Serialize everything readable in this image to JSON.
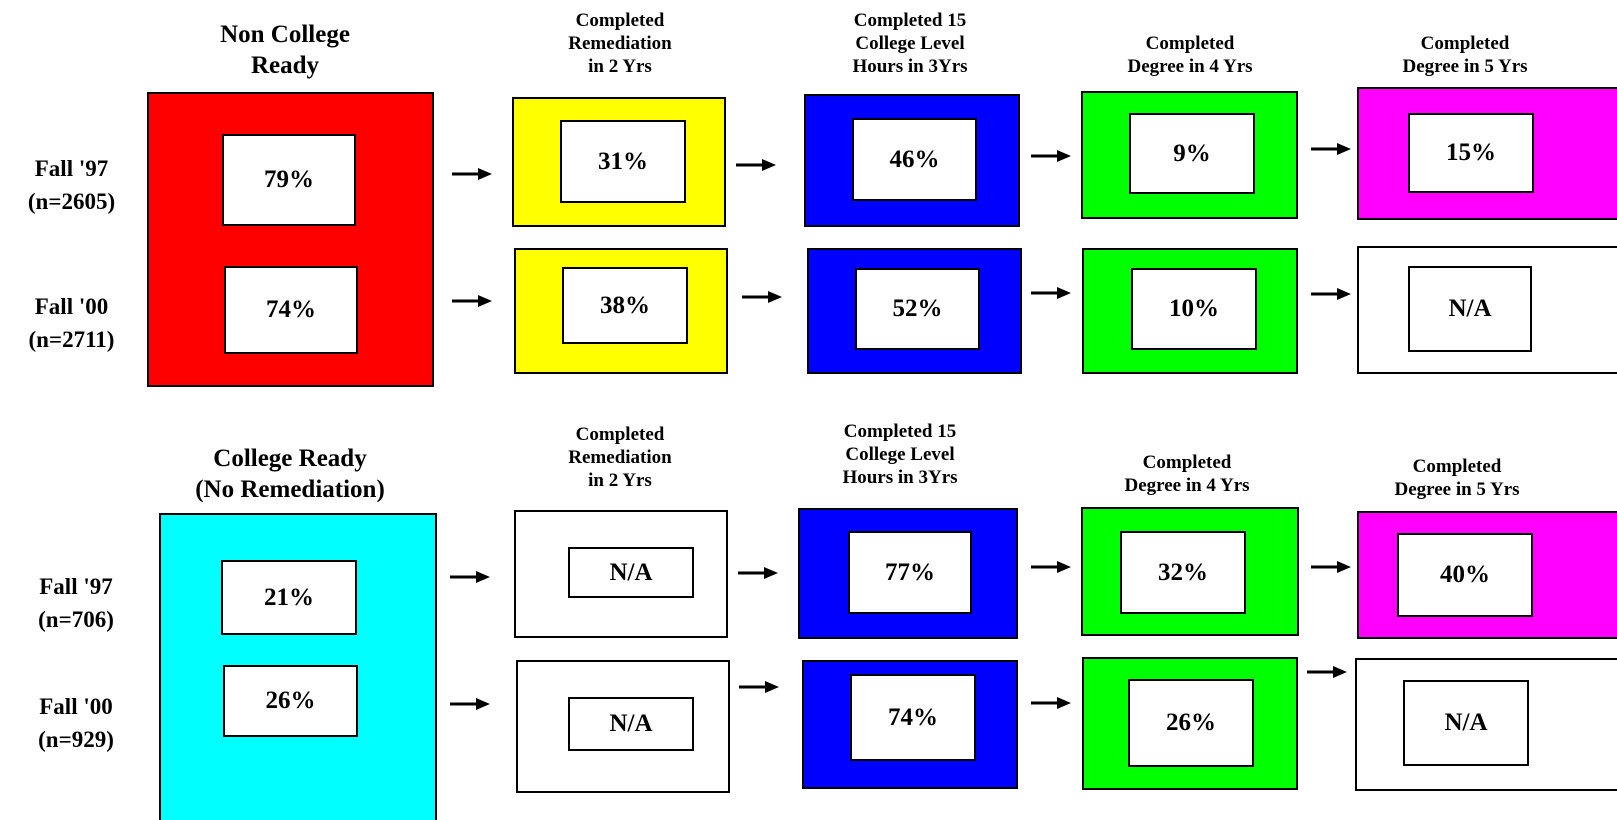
{
  "colors": {
    "non_college_ready": "#ff0000",
    "remediation": "#ffff00",
    "college_hours": "#0000ff",
    "degree_4yrs": "#00ff00",
    "degree_5yrs": "#ff00ff",
    "college_ready": "#00ffff",
    "not_applicable": "#ffffff"
  },
  "sections": [
    {
      "headers": {
        "cohort": "Non College\nReady",
        "remediation": "Completed\nRemediation\nin 2 Yrs",
        "hours": "Completed 15\nCollege Level\nHours in 3Yrs",
        "deg4": "Completed\nDegree in 4 Yrs",
        "deg5": "Completed\nDegree in 5 Yrs"
      },
      "rows": [
        {
          "label": "Fall '97\n(n=2605)",
          "cohort": "79%",
          "remediation": "31%",
          "hours": "46%",
          "deg4": "9%",
          "deg5": "15%"
        },
        {
          "label": "Fall '00\n(n=2711)",
          "cohort": "74%",
          "remediation": "38%",
          "hours": "52%",
          "deg4": "10%",
          "deg5": "N/A"
        }
      ]
    },
    {
      "headers": {
        "cohort": "College Ready\n(No Remediation)",
        "remediation": "Completed\nRemediation\nin 2 Yrs",
        "hours": "Completed 15\nCollege Level\nHours in 3Yrs",
        "deg4": "Completed\nDegree in 4 Yrs",
        "deg5": "Completed\nDegree in 5 Yrs"
      },
      "rows": [
        {
          "label": "Fall '97\n(n=706)",
          "cohort": "21%",
          "remediation": "N/A",
          "hours": "77%",
          "deg4": "32%",
          "deg5": "40%"
        },
        {
          "label": "Fall '00\n(n=929)",
          "cohort": "26%",
          "remediation": "N/A",
          "hours": "74%",
          "deg4": "26%",
          "deg5": "N/A"
        }
      ]
    }
  ]
}
